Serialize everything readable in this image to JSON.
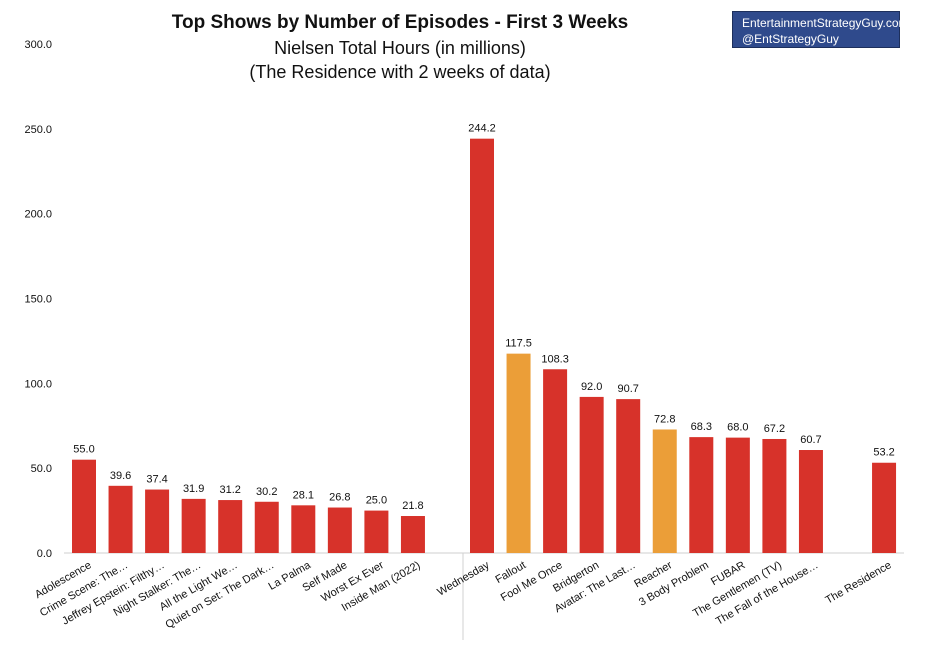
{
  "header": {
    "title": "Top Shows by Number of Episodes - First 3 Weeks",
    "subtitle_line1": "Nielsen Total Hours (in millions)",
    "subtitle_line2": "(The Residence with 2 weeks of data)"
  },
  "credit": {
    "line1": "EntertainmentStrategyGuy.com",
    "line2": "@EntStrategyGuy",
    "background": "#2f4a8c"
  },
  "chart_data": {
    "type": "bar",
    "title": "Top Shows by Number of Episodes - First 3 Weeks",
    "subtitle": "Nielsen Total Hours (in millions) (The Residence with 2 weeks of data)",
    "xlabel": "",
    "ylabel": "",
    "ylim": [
      0,
      300
    ],
    "yticks": [
      "0.0",
      "50.0",
      "100.0",
      "150.0",
      "200.0",
      "250.0",
      "300.0"
    ],
    "grid": false,
    "legend": "none",
    "colors": {
      "default": "#d7322a",
      "highlight": "#eb9e38"
    },
    "groups": [
      {
        "categories": [
          "Adolescence",
          "Crime Scene: The…",
          "Jeffrey Epstein: Filthy…",
          "Night Stalker: The…",
          "All the Light We…",
          "Quiet on Set: The Dark…",
          "La Palma",
          "Self Made",
          "Worst Ex Ever",
          "Inside Man (2022)"
        ],
        "values": [
          55.0,
          39.6,
          37.4,
          31.9,
          31.2,
          30.2,
          28.1,
          26.8,
          25.0,
          21.8
        ],
        "labels": [
          "55.0",
          "39.6",
          "37.4",
          "31.9",
          "31.2",
          "30.2",
          "28.1",
          "26.8",
          "25.0",
          "21.8"
        ],
        "highlight": [
          false,
          false,
          false,
          false,
          false,
          false,
          false,
          false,
          false,
          false
        ]
      },
      {
        "categories": [
          "Wednesday",
          "Fallout",
          "Fool Me Once",
          "Bridgerton",
          "Avatar: The Last…",
          "Reacher",
          "3 Body Problem",
          "FUBAR",
          "The Gentlemen (TV)",
          "The Fall of the House…",
          "",
          "The Residence"
        ],
        "values": [
          244.2,
          117.5,
          108.3,
          92.0,
          90.7,
          72.8,
          68.3,
          68.0,
          67.2,
          60.7,
          null,
          53.2
        ],
        "labels": [
          "244.2",
          "117.5",
          "108.3",
          "92.0",
          "90.7",
          "72.8",
          "68.3",
          "68.0",
          "67.2",
          "60.7",
          "",
          "53.2"
        ],
        "highlight": [
          false,
          true,
          false,
          false,
          false,
          true,
          false,
          false,
          false,
          false,
          false,
          false
        ]
      }
    ]
  }
}
